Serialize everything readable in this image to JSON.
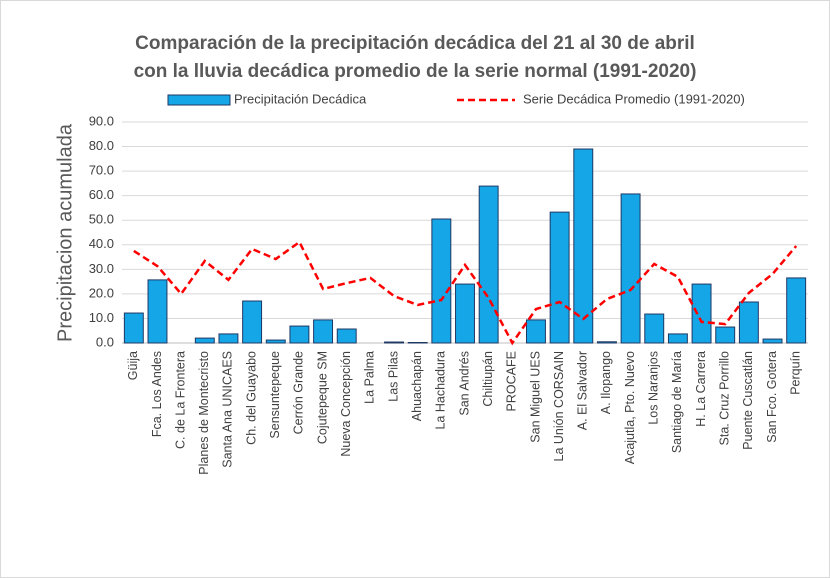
{
  "chart_data": {
    "type": "bar",
    "title": [
      "Comparación de la precipitación decádica del 21 al 30 de abril",
      "con la lluvia decádica promedio de la serie normal (1991-2020)"
    ],
    "y_label": "Precipitacion acumulada",
    "categories": [
      "Güija",
      "Fca. Los Andes",
      "C. de La Frontera",
      "Planes de Montecristo",
      "Santa Ana UNICAES",
      "Ch. del Guayabo",
      "Sensuntepeque",
      "Cerrón Grande",
      "Cojutepeque SM",
      "Nueva Concepción",
      "La Palma",
      "Las Pilas",
      "Ahuachapán",
      "La Hachadura",
      "San Andrés",
      "Chiltiupán",
      "PROCAFE",
      "San Miguel UES",
      "La Unión CORSAIN",
      "A. El Salvador",
      "A. Ilopango",
      "Acajutla, Pto. Nuevo",
      "Los Naranjos",
      "Santiago de María",
      "H. La Carrera",
      "Sta. Cruz Porrillo",
      "Puente Cuscatlán",
      "San Fco. Gotera",
      "Perquín"
    ],
    "series": [
      {
        "name": "Precipitación Decádica",
        "kind": "bar",
        "color": "#14a6e6",
        "values": [
          12.2,
          25.7,
          0,
          2.0,
          3.7,
          17.1,
          1.2,
          6.9,
          9.4,
          5.7,
          0,
          0.4,
          0.2,
          50.5,
          24.0,
          63.9,
          0,
          9.4,
          53.3,
          79.0,
          0.5,
          60.7,
          11.8,
          3.7,
          24.0,
          6.5,
          16.7,
          1.6,
          26.5
        ]
      },
      {
        "name": "Serie Decádica Promedio (1991-2020)",
        "kind": "line",
        "color": "#ff0000",
        "values": [
          37.5,
          31.3,
          20.0,
          33.4,
          25.7,
          38.3,
          34.2,
          41.1,
          22.0,
          24.4,
          26.5,
          19.1,
          15.5,
          17.5,
          31.8,
          18.3,
          0,
          13.8,
          16.7,
          9.8,
          17.9,
          21.6,
          32.2,
          26.9,
          8.6,
          7.7,
          20.4,
          28.1,
          39.5
        ]
      }
    ],
    "ylim": [
      0,
      90
    ],
    "yticks": [
      {
        "value": 0,
        "label": "0.0"
      },
      {
        "value": 10,
        "label": "10.0"
      },
      {
        "value": 20,
        "label": "20.0"
      },
      {
        "value": 30,
        "label": "30.0"
      },
      {
        "value": 40,
        "label": "40.0"
      },
      {
        "value": 50,
        "label": "50.0"
      },
      {
        "value": 60,
        "label": "60.0"
      },
      {
        "value": 70,
        "label": "70.0"
      },
      {
        "value": 80,
        "label": "80.0"
      },
      {
        "value": 90,
        "label": "90.0"
      }
    ],
    "grid": true
  }
}
